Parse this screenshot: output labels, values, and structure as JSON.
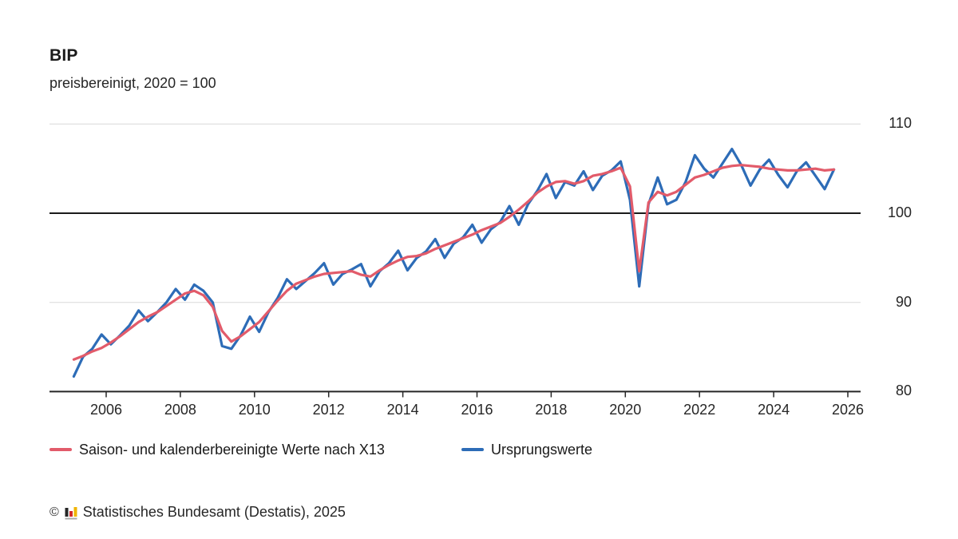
{
  "header": {
    "title": "BIP",
    "subtitle": "preisbereinigt, 2020 = 100"
  },
  "footer": {
    "copyright_symbol": "©",
    "source": "Statistisches Bundesamt (Destatis), 2025"
  },
  "logo_colors": {
    "bar1": "#262626",
    "bar2": "#d22a2a",
    "bar3": "#f0b400",
    "base": "#a8a8a8"
  },
  "chart_data": {
    "type": "line",
    "title": "BIP",
    "subtitle": "preisbereinigt, 2020 = 100",
    "frequency": "quarterly",
    "start_period": "2005-Q1",
    "end_period": "2025-Q3",
    "ylim": [
      80,
      110
    ],
    "yticks": [
      80,
      90,
      100,
      110
    ],
    "xticks": [
      2006,
      2008,
      2010,
      2012,
      2014,
      2016,
      2018,
      2020,
      2022,
      2024,
      2026
    ],
    "baseline_value": 100,
    "grid": "horizontal-only",
    "legend_position": "bottom-left",
    "colors": {
      "grid": "#d9d9d9",
      "baseline": "#1a1a1a",
      "axis": "#262626"
    },
    "series": [
      {
        "name": "Saison- und kalenderbereinigte Werte nach X13",
        "color": "#e25b6a",
        "values": [
          83.6,
          84.0,
          84.5,
          84.9,
          85.5,
          86.2,
          87.0,
          87.8,
          88.4,
          88.9,
          89.6,
          90.3,
          91.0,
          91.3,
          90.8,
          89.5,
          86.8,
          85.6,
          86.2,
          87.0,
          87.8,
          89.0,
          90.2,
          91.3,
          92.1,
          92.5,
          92.9,
          93.2,
          93.3,
          93.4,
          93.5,
          93.1,
          92.9,
          93.6,
          94.2,
          94.7,
          95.1,
          95.2,
          95.5,
          96.0,
          96.4,
          96.8,
          97.2,
          97.6,
          98.1,
          98.5,
          98.9,
          99.6,
          100.4,
          101.3,
          102.3,
          103.0,
          103.5,
          103.6,
          103.3,
          103.6,
          104.2,
          104.4,
          104.7,
          105.1,
          103.0,
          93.5,
          101.2,
          102.4,
          102.0,
          102.4,
          103.2,
          104.0,
          104.3,
          104.7,
          105.1,
          105.3,
          105.4,
          105.3,
          105.2,
          105.0,
          104.9,
          104.8,
          104.8,
          104.9,
          105.0,
          104.8,
          104.9
        ]
      },
      {
        "name": "Ursprungswerte",
        "color": "#2d6cb7",
        "values": [
          81.7,
          83.9,
          84.8,
          86.4,
          85.3,
          86.3,
          87.4,
          89.1,
          87.9,
          88.9,
          90.0,
          91.5,
          90.3,
          92.0,
          91.3,
          90.0,
          85.1,
          84.8,
          86.3,
          88.4,
          86.7,
          88.9,
          90.5,
          92.6,
          91.5,
          92.4,
          93.3,
          94.4,
          92.0,
          93.2,
          93.7,
          94.3,
          91.8,
          93.5,
          94.4,
          95.8,
          93.6,
          95.0,
          95.7,
          97.1,
          95.0,
          96.6,
          97.3,
          98.7,
          96.7,
          98.2,
          99.0,
          100.8,
          98.7,
          101.0,
          102.5,
          104.4,
          101.7,
          103.5,
          103.1,
          104.7,
          102.6,
          104.2,
          104.8,
          105.8,
          101.5,
          91.8,
          101.0,
          104.0,
          101.0,
          101.5,
          103.5,
          106.5,
          105.0,
          104.0,
          105.6,
          107.2,
          105.4,
          103.1,
          104.9,
          106.0,
          104.3,
          102.9,
          104.7,
          105.7,
          104.2,
          102.7,
          104.9
        ]
      }
    ]
  }
}
